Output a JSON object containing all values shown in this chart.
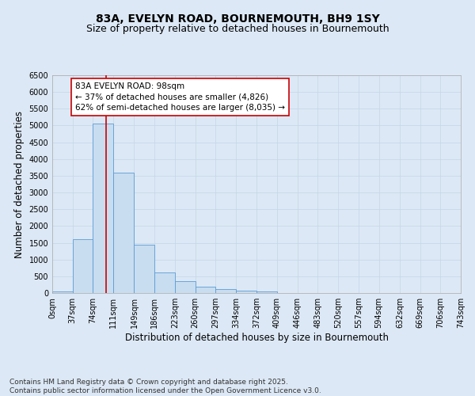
{
  "title_line1": "83A, EVELYN ROAD, BOURNEMOUTH, BH9 1SY",
  "title_line2": "Size of property relative to detached houses in Bournemouth",
  "xlabel": "Distribution of detached houses by size in Bournemouth",
  "ylabel": "Number of detached properties",
  "bar_color": "#c8ddf0",
  "bar_edge_color": "#5b9bd5",
  "grid_color": "#c8d8e8",
  "background_color": "#dce8f5",
  "vline_x": 98,
  "vline_color": "#cc0000",
  "annotation_text": "83A EVELYN ROAD: 98sqm\n← 37% of detached houses are smaller (4,826)\n62% of semi-detached houses are larger (8,035) →",
  "annotation_box_color": "#ffffff",
  "annotation_edge_color": "#cc0000",
  "bin_edges": [
    0,
    37,
    74,
    111,
    149,
    186,
    223,
    260,
    297,
    334,
    372,
    409,
    446,
    483,
    520,
    557,
    594,
    632,
    669,
    706,
    743
  ],
  "bin_counts": [
    55,
    1600,
    5050,
    3600,
    1450,
    620,
    350,
    190,
    120,
    80,
    45,
    0,
    0,
    0,
    0,
    0,
    0,
    0,
    0,
    0
  ],
  "tick_labels": [
    "0sqm",
    "37sqm",
    "74sqm",
    "111sqm",
    "149sqm",
    "186sqm",
    "223sqm",
    "260sqm",
    "297sqm",
    "334sqm",
    "372sqm",
    "409sqm",
    "446sqm",
    "483sqm",
    "520sqm",
    "557sqm",
    "594sqm",
    "632sqm",
    "669sqm",
    "706sqm",
    "743sqm"
  ],
  "ylim": [
    0,
    6500
  ],
  "yticks": [
    0,
    500,
    1000,
    1500,
    2000,
    2500,
    3000,
    3500,
    4000,
    4500,
    5000,
    5500,
    6000,
    6500
  ],
  "footer_text": "Contains HM Land Registry data © Crown copyright and database right 2025.\nContains public sector information licensed under the Open Government Licence v3.0.",
  "title_fontsize": 10,
  "subtitle_fontsize": 9,
  "axis_label_fontsize": 8.5,
  "tick_fontsize": 7,
  "annotation_fontsize": 7.5,
  "footer_fontsize": 6.5
}
